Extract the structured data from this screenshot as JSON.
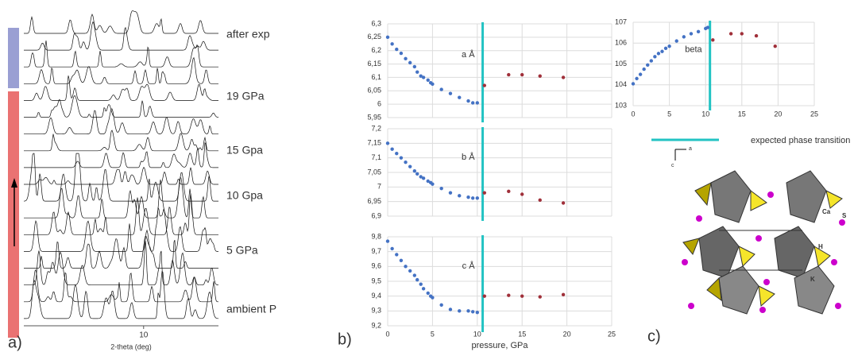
{
  "panel_labels": [
    "a)",
    "b)",
    "c)"
  ],
  "legend": "expected phase transition",
  "structure": {
    "labels": [
      "a",
      "c",
      "Ca",
      "S",
      "H",
      "K"
    ]
  },
  "chart_data": [
    {
      "type": "patterns",
      "labels": [
        "after exp",
        "19 GPa",
        "15 Gpa",
        "10 Gpa",
        "5 GPa",
        "ambient P"
      ],
      "xlim": [
        2,
        15
      ],
      "xticks": [
        10
      ],
      "xlabel": "2-theta (deg)"
    },
    {
      "type": "scatter",
      "annotation": "a Å",
      "xlim": [
        0,
        25
      ],
      "xticks": [
        0,
        5,
        10,
        15,
        20,
        25
      ],
      "xtick_labels": false,
      "ylim": [
        5.95,
        6.3
      ],
      "yticks": [
        {
          "value": 5.95,
          "label": "5,95"
        },
        6,
        {
          "value": 6.05,
          "label": "6,05"
        },
        {
          "value": 6.1,
          "label": "6,1"
        },
        {
          "value": 6.15,
          "label": "6,15"
        },
        {
          "value": 6.2,
          "label": "6,2"
        },
        {
          "value": 6.25,
          "label": "6,25"
        },
        {
          "value": 6.3,
          "label": "6,3"
        }
      ],
      "vline": {
        "value": 10.6,
        "color": "#22c3c3"
      },
      "series": [
        {
          "color": "#4472c4",
          "x": [
            0,
            0.5,
            1,
            1.5,
            2,
            2.5,
            3,
            3.3,
            3.7,
            4,
            4.5,
            4.8,
            5,
            6,
            7,
            8,
            9,
            9.5,
            10
          ],
          "values": [
            6.25,
            6.225,
            6.205,
            6.19,
            6.17,
            6.155,
            6.14,
            6.12,
            6.105,
            6.1,
            6.09,
            6.08,
            6.075,
            6.055,
            6.04,
            6.025,
            6.012,
            6.005,
            6.005
          ]
        },
        {
          "color": "#a0303a",
          "x": [
            10.8,
            13.5,
            15,
            17,
            19.6
          ],
          "values": [
            6.07,
            6.11,
            6.11,
            6.105,
            6.1
          ]
        }
      ]
    },
    {
      "type": "scatter",
      "annotation": "b Å",
      "xlim": [
        0,
        25
      ],
      "xticks": [
        0,
        5,
        10,
        15,
        20,
        25
      ],
      "xtick_labels": false,
      "ylim": [
        6.9,
        7.2
      ],
      "yticks": [
        {
          "value": 6.9,
          "label": "6,9"
        },
        {
          "value": 6.95,
          "label": "6,95"
        },
        7,
        {
          "value": 7.05,
          "label": "7,05"
        },
        {
          "value": 7.1,
          "label": "7,1"
        },
        {
          "value": 7.15,
          "label": "7,15"
        },
        {
          "value": 7.2,
          "label": "7,2"
        }
      ],
      "vline": {
        "value": 10.6,
        "color": "#22c3c3"
      },
      "series": [
        {
          "color": "#4472c4",
          "x": [
            0,
            0.5,
            1,
            1.5,
            2,
            2.5,
            3,
            3.3,
            3.7,
            4,
            4.5,
            4.8,
            5,
            6,
            7,
            8,
            9,
            9.5,
            10
          ],
          "values": [
            7.15,
            7.13,
            7.115,
            7.1,
            7.085,
            7.07,
            7.055,
            7.045,
            7.035,
            7.03,
            7.02,
            7.015,
            7.01,
            6.995,
            6.98,
            6.97,
            6.965,
            6.962,
            6.962
          ]
        },
        {
          "color": "#a0303a",
          "x": [
            10.8,
            13.5,
            15,
            17,
            19.6
          ],
          "values": [
            6.98,
            6.985,
            6.975,
            6.955,
            6.945
          ]
        }
      ]
    },
    {
      "type": "scatter",
      "annotation": "c Å",
      "xlim": [
        0,
        25
      ],
      "xticks": [
        0,
        5,
        10,
        15,
        20,
        25
      ],
      "xtick_labels": true,
      "xlabel": "pressure, GPa",
      "ylim": [
        9.2,
        9.8
      ],
      "yticks": [
        {
          "value": 9.2,
          "label": "9,2"
        },
        {
          "value": 9.3,
          "label": "9,3"
        },
        {
          "value": 9.4,
          "label": "9,4"
        },
        {
          "value": 9.5,
          "label": "9,5"
        },
        {
          "value": 9.6,
          "label": "9,6"
        },
        {
          "value": 9.7,
          "label": "9,7"
        },
        {
          "value": 9.8,
          "label": "9,8"
        }
      ],
      "vline": {
        "value": 10.6,
        "color": "#22c3c3"
      },
      "series": [
        {
          "color": "#4472c4",
          "x": [
            0,
            0.5,
            1,
            1.5,
            2,
            2.5,
            3,
            3.3,
            3.7,
            4,
            4.5,
            4.8,
            5,
            6,
            7,
            8,
            9,
            9.5,
            10
          ],
          "values": [
            9.77,
            9.72,
            9.68,
            9.64,
            9.6,
            9.57,
            9.54,
            9.51,
            9.48,
            9.45,
            9.42,
            9.4,
            9.39,
            9.34,
            9.31,
            9.3,
            9.3,
            9.295,
            9.29
          ]
        },
        {
          "color": "#a0303a",
          "x": [
            10.8,
            13.5,
            15,
            17,
            19.6
          ],
          "values": [
            9.4,
            9.405,
            9.4,
            9.395,
            9.41
          ]
        }
      ]
    },
    {
      "type": "scatter",
      "annotation": "beta",
      "xlim": [
        0,
        25
      ],
      "xticks": [
        0,
        5,
        10,
        15,
        20,
        25
      ],
      "xtick_labels": true,
      "ylim": [
        103,
        107
      ],
      "yticks": [
        103,
        104,
        105,
        106,
        107
      ],
      "vline": {
        "value": 10.6,
        "color": "#22c3c3"
      },
      "series": [
        {
          "color": "#4472c4",
          "x": [
            0,
            0.5,
            1,
            1.5,
            2,
            2.5,
            3,
            3.5,
            4,
            4.5,
            5,
            6,
            7,
            8,
            9,
            10,
            10.3
          ],
          "values": [
            104.05,
            104.3,
            104.5,
            104.75,
            104.95,
            105.15,
            105.35,
            105.5,
            105.6,
            105.75,
            105.85,
            106.1,
            106.3,
            106.45,
            106.55,
            106.7,
            106.75
          ]
        },
        {
          "color": "#a0303a",
          "x": [
            11,
            13.5,
            15,
            17,
            19.6
          ],
          "values": [
            106.15,
            106.45,
            106.45,
            106.35,
            105.85
          ]
        }
      ]
    }
  ]
}
